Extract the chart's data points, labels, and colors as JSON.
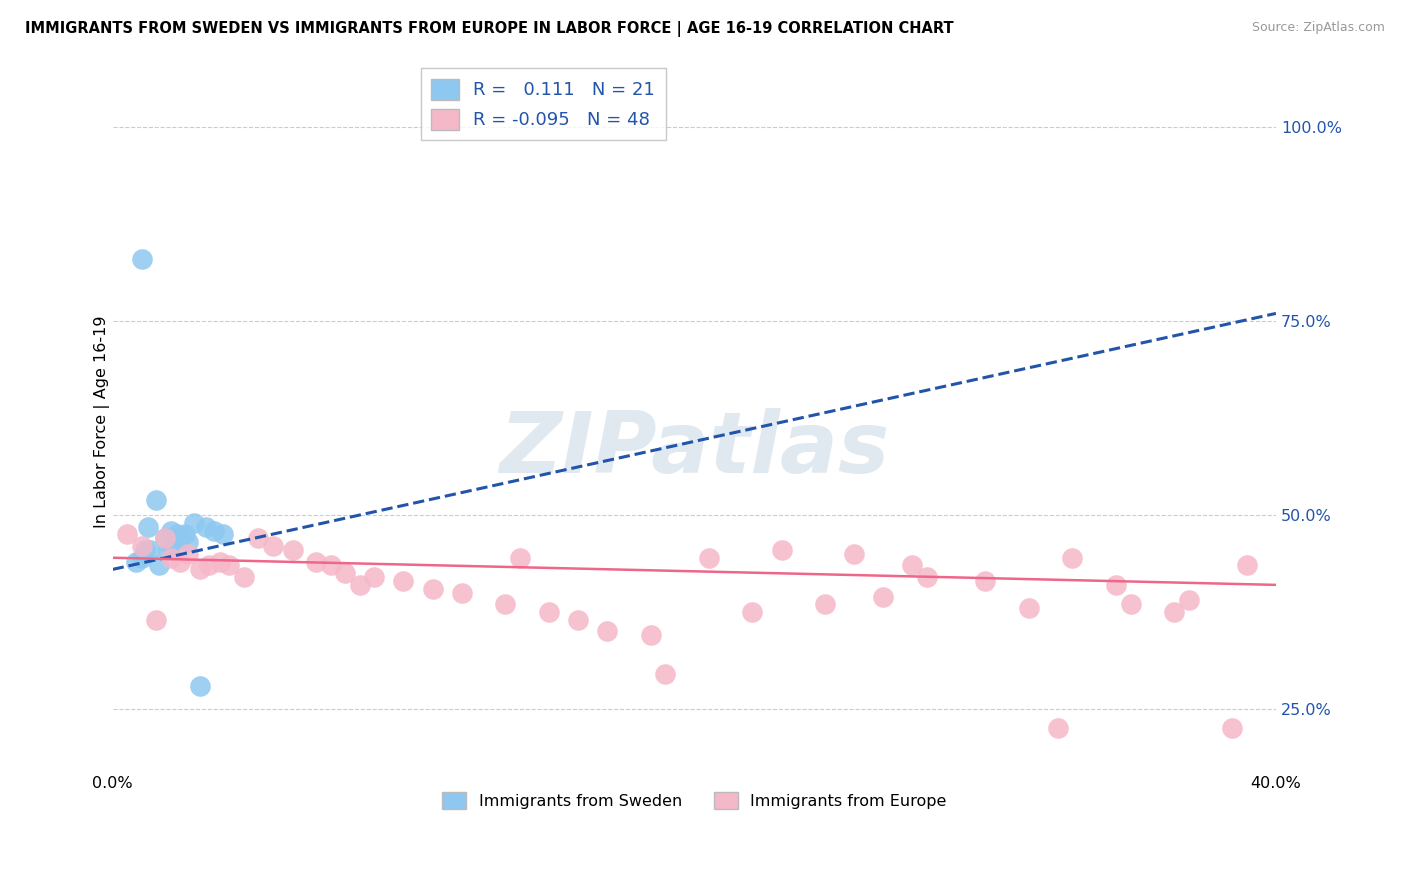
{
  "title": "IMMIGRANTS FROM SWEDEN VS IMMIGRANTS FROM EUROPE IN LABOR FORCE | AGE 16-19 CORRELATION CHART",
  "source": "Source: ZipAtlas.com",
  "ylabel_label": "In Labor Force | Age 16-19",
  "legend_bottom_left": "Immigrants from Sweden",
  "legend_bottom_right": "Immigrants from Europe",
  "blue_R": "0.111",
  "blue_N": "21",
  "pink_R": "-0.095",
  "pink_N": "48",
  "xlim": [
    0.0,
    40.0
  ],
  "ylim": [
    17.0,
    107.0
  ],
  "yticks": [
    25.0,
    50.0,
    75.0,
    100.0
  ],
  "ytick_labels": [
    "25.0%",
    "50.0%",
    "75.0%",
    "100.0%"
  ],
  "xticks": [
    0.0,
    40.0
  ],
  "xtick_labels": [
    "0.0%",
    "40.0%"
  ],
  "blue_scatter_color": "#8ec8f0",
  "pink_scatter_color": "#f5b8c8",
  "blue_line_color": "#2255aa",
  "pink_line_color": "#ee6688",
  "blue_dashed_color": "#6699cc",
  "watermark_text": "ZIPatlas",
  "watermark_color": "#e0e8f0",
  "blue_line_x0": 0.0,
  "blue_line_y0": 43.0,
  "blue_line_x1": 40.0,
  "blue_line_y1": 76.0,
  "pink_line_x0": 0.0,
  "pink_line_y0": 44.5,
  "pink_line_x1": 40.0,
  "pink_line_y1": 41.0,
  "blue_points_x": [
    1.0,
    1.5,
    1.2,
    2.0,
    1.8,
    2.5,
    1.3,
    2.8,
    3.2,
    1.0,
    3.8,
    2.3,
    0.8,
    2.0,
    1.6,
    2.2,
    1.9,
    1.1,
    3.5,
    2.6,
    3.0
  ],
  "blue_points_y": [
    83.0,
    52.0,
    48.5,
    48.0,
    47.0,
    47.5,
    45.5,
    49.0,
    48.5,
    44.5,
    47.5,
    47.0,
    44.0,
    46.0,
    43.5,
    47.5,
    45.5,
    45.5,
    48.0,
    46.5,
    28.0
  ],
  "pink_points_x": [
    0.5,
    1.0,
    1.5,
    1.8,
    2.0,
    2.3,
    2.6,
    3.0,
    3.3,
    3.7,
    4.0,
    4.5,
    5.0,
    5.5,
    6.2,
    7.0,
    7.5,
    8.0,
    8.5,
    9.0,
    10.0,
    11.0,
    12.0,
    13.5,
    14.0,
    15.0,
    16.0,
    17.0,
    18.5,
    19.0,
    20.5,
    22.0,
    23.0,
    24.5,
    25.5,
    26.5,
    27.5,
    28.0,
    30.0,
    31.5,
    32.5,
    33.0,
    34.5,
    35.0,
    36.5,
    37.0,
    38.5,
    39.0
  ],
  "pink_points_y": [
    47.5,
    46.0,
    36.5,
    47.0,
    44.5,
    44.0,
    45.0,
    43.0,
    43.5,
    44.0,
    43.5,
    42.0,
    47.0,
    46.0,
    45.5,
    44.0,
    43.5,
    42.5,
    41.0,
    42.0,
    41.5,
    40.5,
    40.0,
    38.5,
    44.5,
    37.5,
    36.5,
    35.0,
    34.5,
    29.5,
    44.5,
    37.5,
    45.5,
    38.5,
    45.0,
    39.5,
    43.5,
    42.0,
    41.5,
    38.0,
    22.5,
    44.5,
    41.0,
    38.5,
    37.5,
    39.0,
    22.5,
    43.5
  ]
}
